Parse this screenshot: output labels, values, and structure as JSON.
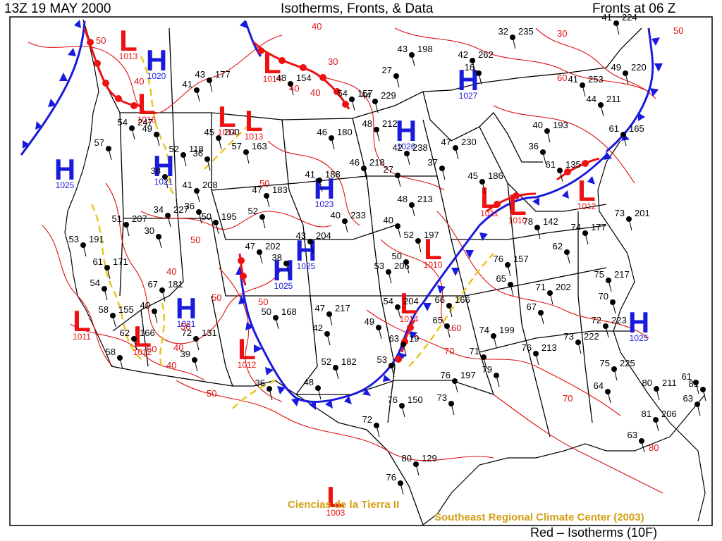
{
  "header": {
    "time_label": "13Z  19 MAY 2000",
    "title": "Isotherms, Fronts, & Data",
    "fronts_label": "Fronts at 06 Z"
  },
  "colors": {
    "isotherm": "#dd1111",
    "high": "#1a1add",
    "low": "#ee1111",
    "cold_front": "#1a1add",
    "warm_front": "#ee1111",
    "trough": "#e8c51a",
    "credit": "#d4a017"
  },
  "pressure_centers": [
    {
      "type": "L",
      "letter": "L",
      "value": "1013"
    },
    {
      "type": "H",
      "letter": "H",
      "value": "1020"
    },
    {
      "type": "L",
      "letter": "L",
      "value": "1014"
    },
    {
      "type": "L",
      "letter": "L",
      "value": "1014"
    },
    {
      "type": "L",
      "letter": "L",
      "value": "1013"
    },
    {
      "type": "L",
      "letter": "L",
      "value": "1016"
    },
    {
      "type": "H",
      "letter": "H",
      "value": "1027"
    },
    {
      "type": "H",
      "letter": "H",
      "value": "1026"
    },
    {
      "type": "H",
      "letter": "H",
      "value": "1025"
    },
    {
      "type": "H",
      "letter": "H",
      "value": "1021"
    },
    {
      "type": "H",
      "letter": "H",
      "value": "1023"
    },
    {
      "type": "H",
      "letter": "H",
      "value": "1025"
    },
    {
      "type": "H",
      "letter": "H",
      "value": "1025"
    },
    {
      "type": "L",
      "letter": "L",
      "value": "1011"
    },
    {
      "type": "L",
      "letter": "L",
      "value": "1010"
    },
    {
      "type": "L",
      "letter": "L",
      "value": "1012"
    },
    {
      "type": "L",
      "letter": "L",
      "value": "1010"
    },
    {
      "type": "L",
      "letter": "L",
      "value": "1014"
    },
    {
      "type": "H",
      "letter": "H",
      "value": "1021"
    },
    {
      "type": "L",
      "letter": "L",
      "value": "1011"
    },
    {
      "type": "L",
      "letter": "L",
      "value": "1012"
    },
    {
      "type": "L",
      "letter": "L",
      "value": "1012"
    },
    {
      "type": "H",
      "letter": "H",
      "value": "1025"
    },
    {
      "type": "L",
      "letter": "L",
      "value": "1003"
    }
  ],
  "stations": [
    {
      "temp": "43",
      "pressure": "177"
    },
    {
      "temp": "41",
      "pressure": ""
    },
    {
      "temp": "48",
      "pressure": "154"
    },
    {
      "temp": "54",
      "pressure": "157"
    },
    {
      "temp": "44",
      "pressure": "229"
    },
    {
      "temp": "43",
      "pressure": "198"
    },
    {
      "temp": "27",
      "pressure": ""
    },
    {
      "temp": "42",
      "pressure": "262"
    },
    {
      "temp": "16",
      "pressure": ""
    },
    {
      "temp": "32",
      "pressure": "235"
    },
    {
      "temp": "41",
      "pressure": "224"
    },
    {
      "temp": "49",
      "pressure": "220"
    },
    {
      "temp": "41",
      "pressure": "253"
    },
    {
      "temp": "54",
      "pressure": "247"
    },
    {
      "temp": "57",
      "pressure": ""
    },
    {
      "temp": "49",
      "pressure": ""
    },
    {
      "temp": "45",
      "pressure": "200"
    },
    {
      "temp": "36",
      "pressure": ""
    },
    {
      "temp": "57",
      "pressure": "163"
    },
    {
      "temp": "46",
      "pressure": "180"
    },
    {
      "temp": "48",
      "pressure": "212"
    },
    {
      "temp": "42",
      "pressure": "238"
    },
    {
      "temp": "47",
      "pressure": "230"
    },
    {
      "temp": "37",
      "pressure": ""
    },
    {
      "temp": "40",
      "pressure": "193"
    },
    {
      "temp": "36",
      "pressure": ""
    },
    {
      "temp": "44",
      "pressure": "211"
    },
    {
      "temp": "61",
      "pressure": "165"
    },
    {
      "temp": "52",
      "pressure": "118"
    },
    {
      "temp": "38",
      "pressure": ""
    },
    {
      "temp": "41",
      "pressure": "208"
    },
    {
      "temp": "47",
      "pressure": "183"
    },
    {
      "temp": "41",
      "pressure": "188"
    },
    {
      "temp": "46",
      "pressure": "218"
    },
    {
      "temp": "27",
      "pressure": ""
    },
    {
      "temp": "45",
      "pressure": "186"
    },
    {
      "temp": "61",
      "pressure": "135"
    },
    {
      "temp": "34",
      "pressure": "227"
    },
    {
      "temp": "36",
      "pressure": ""
    },
    {
      "temp": "50",
      "pressure": "195"
    },
    {
      "temp": "52",
      "pressure": ""
    },
    {
      "temp": "40",
      "pressure": "233"
    },
    {
      "temp": "48",
      "pressure": "213"
    },
    {
      "temp": "40",
      "pressure": ""
    },
    {
      "temp": "73",
      "pressure": "201"
    },
    {
      "temp": "51",
      "pressure": "207"
    },
    {
      "temp": "30",
      "pressure": ""
    },
    {
      "temp": "47",
      "pressure": "202"
    },
    {
      "temp": "43",
      "pressure": "204"
    },
    {
      "temp": "38",
      "pressure": ""
    },
    {
      "temp": "52",
      "pressure": "197"
    },
    {
      "temp": "50",
      "pressure": ""
    },
    {
      "temp": "53",
      "pressure": "206"
    },
    {
      "temp": "78",
      "pressure": "142"
    },
    {
      "temp": "74",
      "pressure": "177"
    },
    {
      "temp": "62",
      "pressure": ""
    },
    {
      "temp": "53",
      "pressure": "191"
    },
    {
      "temp": "61",
      "pressure": "171"
    },
    {
      "temp": "54",
      "pressure": ""
    },
    {
      "temp": "76",
      "pressure": "157"
    },
    {
      "temp": "65",
      "pressure": ""
    },
    {
      "temp": "75",
      "pressure": "217"
    },
    {
      "temp": "70",
      "pressure": ""
    },
    {
      "temp": "71",
      "pressure": "202"
    },
    {
      "temp": "67",
      "pressure": ""
    },
    {
      "temp": "67",
      "pressure": "181"
    },
    {
      "temp": "40",
      "pressure": ""
    },
    {
      "temp": "50",
      "pressure": "168"
    },
    {
      "temp": "47",
      "pressure": "217"
    },
    {
      "temp": "42",
      "pressure": ""
    },
    {
      "temp": "54",
      "pressure": "204"
    },
    {
      "temp": "49",
      "pressure": ""
    },
    {
      "temp": "66",
      "pressure": "166"
    },
    {
      "temp": "65",
      "pressure": ""
    },
    {
      "temp": "58",
      "pressure": "155"
    },
    {
      "temp": "62",
      "pressure": "166"
    },
    {
      "temp": "58",
      "pressure": ""
    },
    {
      "temp": "72",
      "pressure": "131"
    },
    {
      "temp": "39",
      "pressure": ""
    },
    {
      "temp": "63",
      "pressure": "19"
    },
    {
      "temp": "53",
      "pressure": ""
    },
    {
      "temp": "74",
      "pressure": "199"
    },
    {
      "temp": "71",
      "pressure": ""
    },
    {
      "temp": "76",
      "pressure": "213"
    },
    {
      "temp": "73",
      "pressure": "222"
    },
    {
      "temp": "72",
      "pressure": "223"
    },
    {
      "temp": "75",
      "pressure": "225"
    },
    {
      "temp": "64",
      "pressure": ""
    },
    {
      "temp": "61",
      "pressure": ""
    },
    {
      "temp": "36",
      "pressure": ""
    },
    {
      "temp": "52",
      "pressure": "182"
    },
    {
      "temp": "48",
      "pressure": ""
    },
    {
      "temp": "76",
      "pressure": "197"
    },
    {
      "temp": "73",
      "pressure": ""
    },
    {
      "temp": "79",
      "pressure": ""
    },
    {
      "temp": "76",
      "pressure": "150"
    },
    {
      "temp": "72",
      "pressure": ""
    },
    {
      "temp": "80",
      "pressure": "211"
    },
    {
      "temp": "81",
      "pressure": "206"
    },
    {
      "temp": "63",
      "pressure": ""
    },
    {
      "temp": "81",
      "pressure": ""
    },
    {
      "temp": "63",
      "pressure": ""
    },
    {
      "temp": "80",
      "pressure": "129"
    },
    {
      "temp": "76",
      "pressure": ""
    }
  ],
  "isotherm_labels": [
    "50",
    "40",
    "40",
    "30",
    "40",
    "40",
    "50",
    "40",
    "50",
    "50",
    "40",
    "50",
    "60",
    "50",
    "50",
    "40",
    "70",
    "60",
    "70",
    "60",
    "80",
    "30",
    "50"
  ],
  "credits": {
    "ciencias": "Ciencias de la Tierra II",
    "serc": "Southeast Regional Climate Center (2003)"
  },
  "legend": "Red – Isotherms (10F)"
}
